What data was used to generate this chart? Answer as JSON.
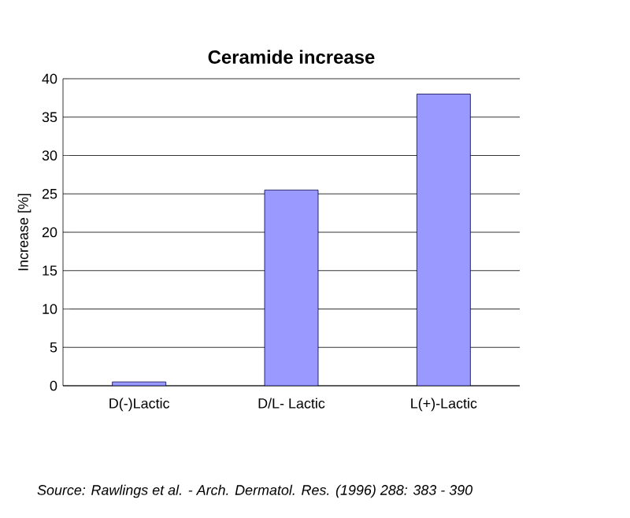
{
  "chart_data": {
    "type": "bar",
    "title": "Ceramide increase",
    "ylabel": "Increase [%]",
    "categories": [
      "D(-)Lactic",
      "D/L- Lactic",
      "L(+)-Lactic"
    ],
    "values": [
      0.5,
      25.5,
      38
    ],
    "color": "#9999ff",
    "ylim": [
      0,
      40
    ],
    "yticks": [
      0,
      5,
      10,
      15,
      20,
      25,
      30,
      35,
      40
    ],
    "grid": "y",
    "annotations": [
      "Source: Rawlings et al. - Arch. Dermatol. Res. (1996) 288: 383 - 390"
    ]
  }
}
